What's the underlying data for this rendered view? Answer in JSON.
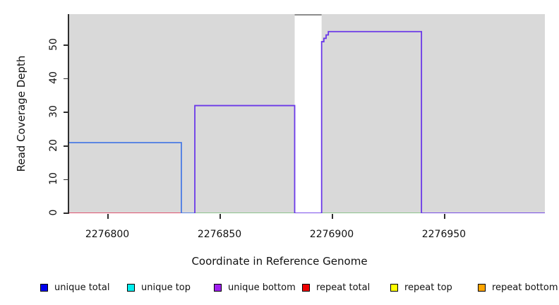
{
  "figure": {
    "background": "#ffffff",
    "plot_background": "#d9d9d9",
    "axis_color": "#2e2e2e"
  },
  "chart_data": {
    "type": "line",
    "title": "",
    "xlabel": "Coordinate in Reference Genome",
    "ylabel": "Read Coverage Depth",
    "xlim": [
      2276783,
      2276995
    ],
    "ylim": [
      0,
      59.2
    ],
    "x_ticks": [
      2276800,
      2276850,
      2276900,
      2276950
    ],
    "y_ticks": [
      0,
      10,
      20,
      30,
      40,
      50
    ],
    "grid": false,
    "legend_position": "bottom",
    "gap_region": {
      "x0": 2276883.5,
      "x1": 2276895.5,
      "fill": "#ffffff",
      "cap_color": "#8c8c8c",
      "note": "white vertical band (zero total coverage) with dark gray cap at plot top"
    },
    "series": [
      {
        "name": "repeat-total-zero-line",
        "color": "#e04060",
        "points": [
          [
            2276783,
            0
          ],
          [
            2276833,
            0
          ]
        ]
      },
      {
        "name": "zero-baseline-green-left",
        "color": "#82c182",
        "points": [
          [
            2276839,
            0
          ],
          [
            2276883.5,
            0
          ]
        ]
      },
      {
        "name": "zero-baseline-green-right",
        "color": "#82c182",
        "points": [
          [
            2276895.5,
            0
          ],
          [
            2276940,
            0
          ]
        ]
      },
      {
        "name": "unique-total-blue-step",
        "color": "#4a7ae4",
        "points": [
          [
            2276783,
            21
          ],
          [
            2276833,
            21
          ],
          [
            2276833,
            0
          ],
          [
            2276839,
            0
          ]
        ]
      },
      {
        "name": "unique-bottom-purple-step",
        "color": "#6a38e8",
        "points": [
          [
            2276839,
            0
          ],
          [
            2276839,
            32
          ],
          [
            2276883.5,
            32
          ],
          [
            2276883.5,
            0
          ],
          [
            2276895.5,
            0
          ],
          [
            2276895.5,
            51
          ],
          [
            2276896.5,
            51
          ],
          [
            2276896.5,
            52
          ],
          [
            2276897.5,
            52
          ],
          [
            2276897.5,
            53
          ],
          [
            2276898.5,
            53
          ],
          [
            2276898.5,
            54
          ],
          [
            2276940,
            54
          ],
          [
            2276940,
            0
          ],
          [
            2276995,
            0
          ]
        ]
      }
    ]
  },
  "legend": {
    "items": [
      {
        "label": "unique total",
        "color": "#0000ee"
      },
      {
        "label": "unique top",
        "color": "#00eeee"
      },
      {
        "label": "unique bottom",
        "color": "#a020f0"
      },
      {
        "label": "repeat total",
        "color": "#ee0000"
      },
      {
        "label": "repeat top",
        "color": "#ffff00"
      },
      {
        "label": "repeat bottom",
        "color": "#ffa500"
      }
    ]
  }
}
